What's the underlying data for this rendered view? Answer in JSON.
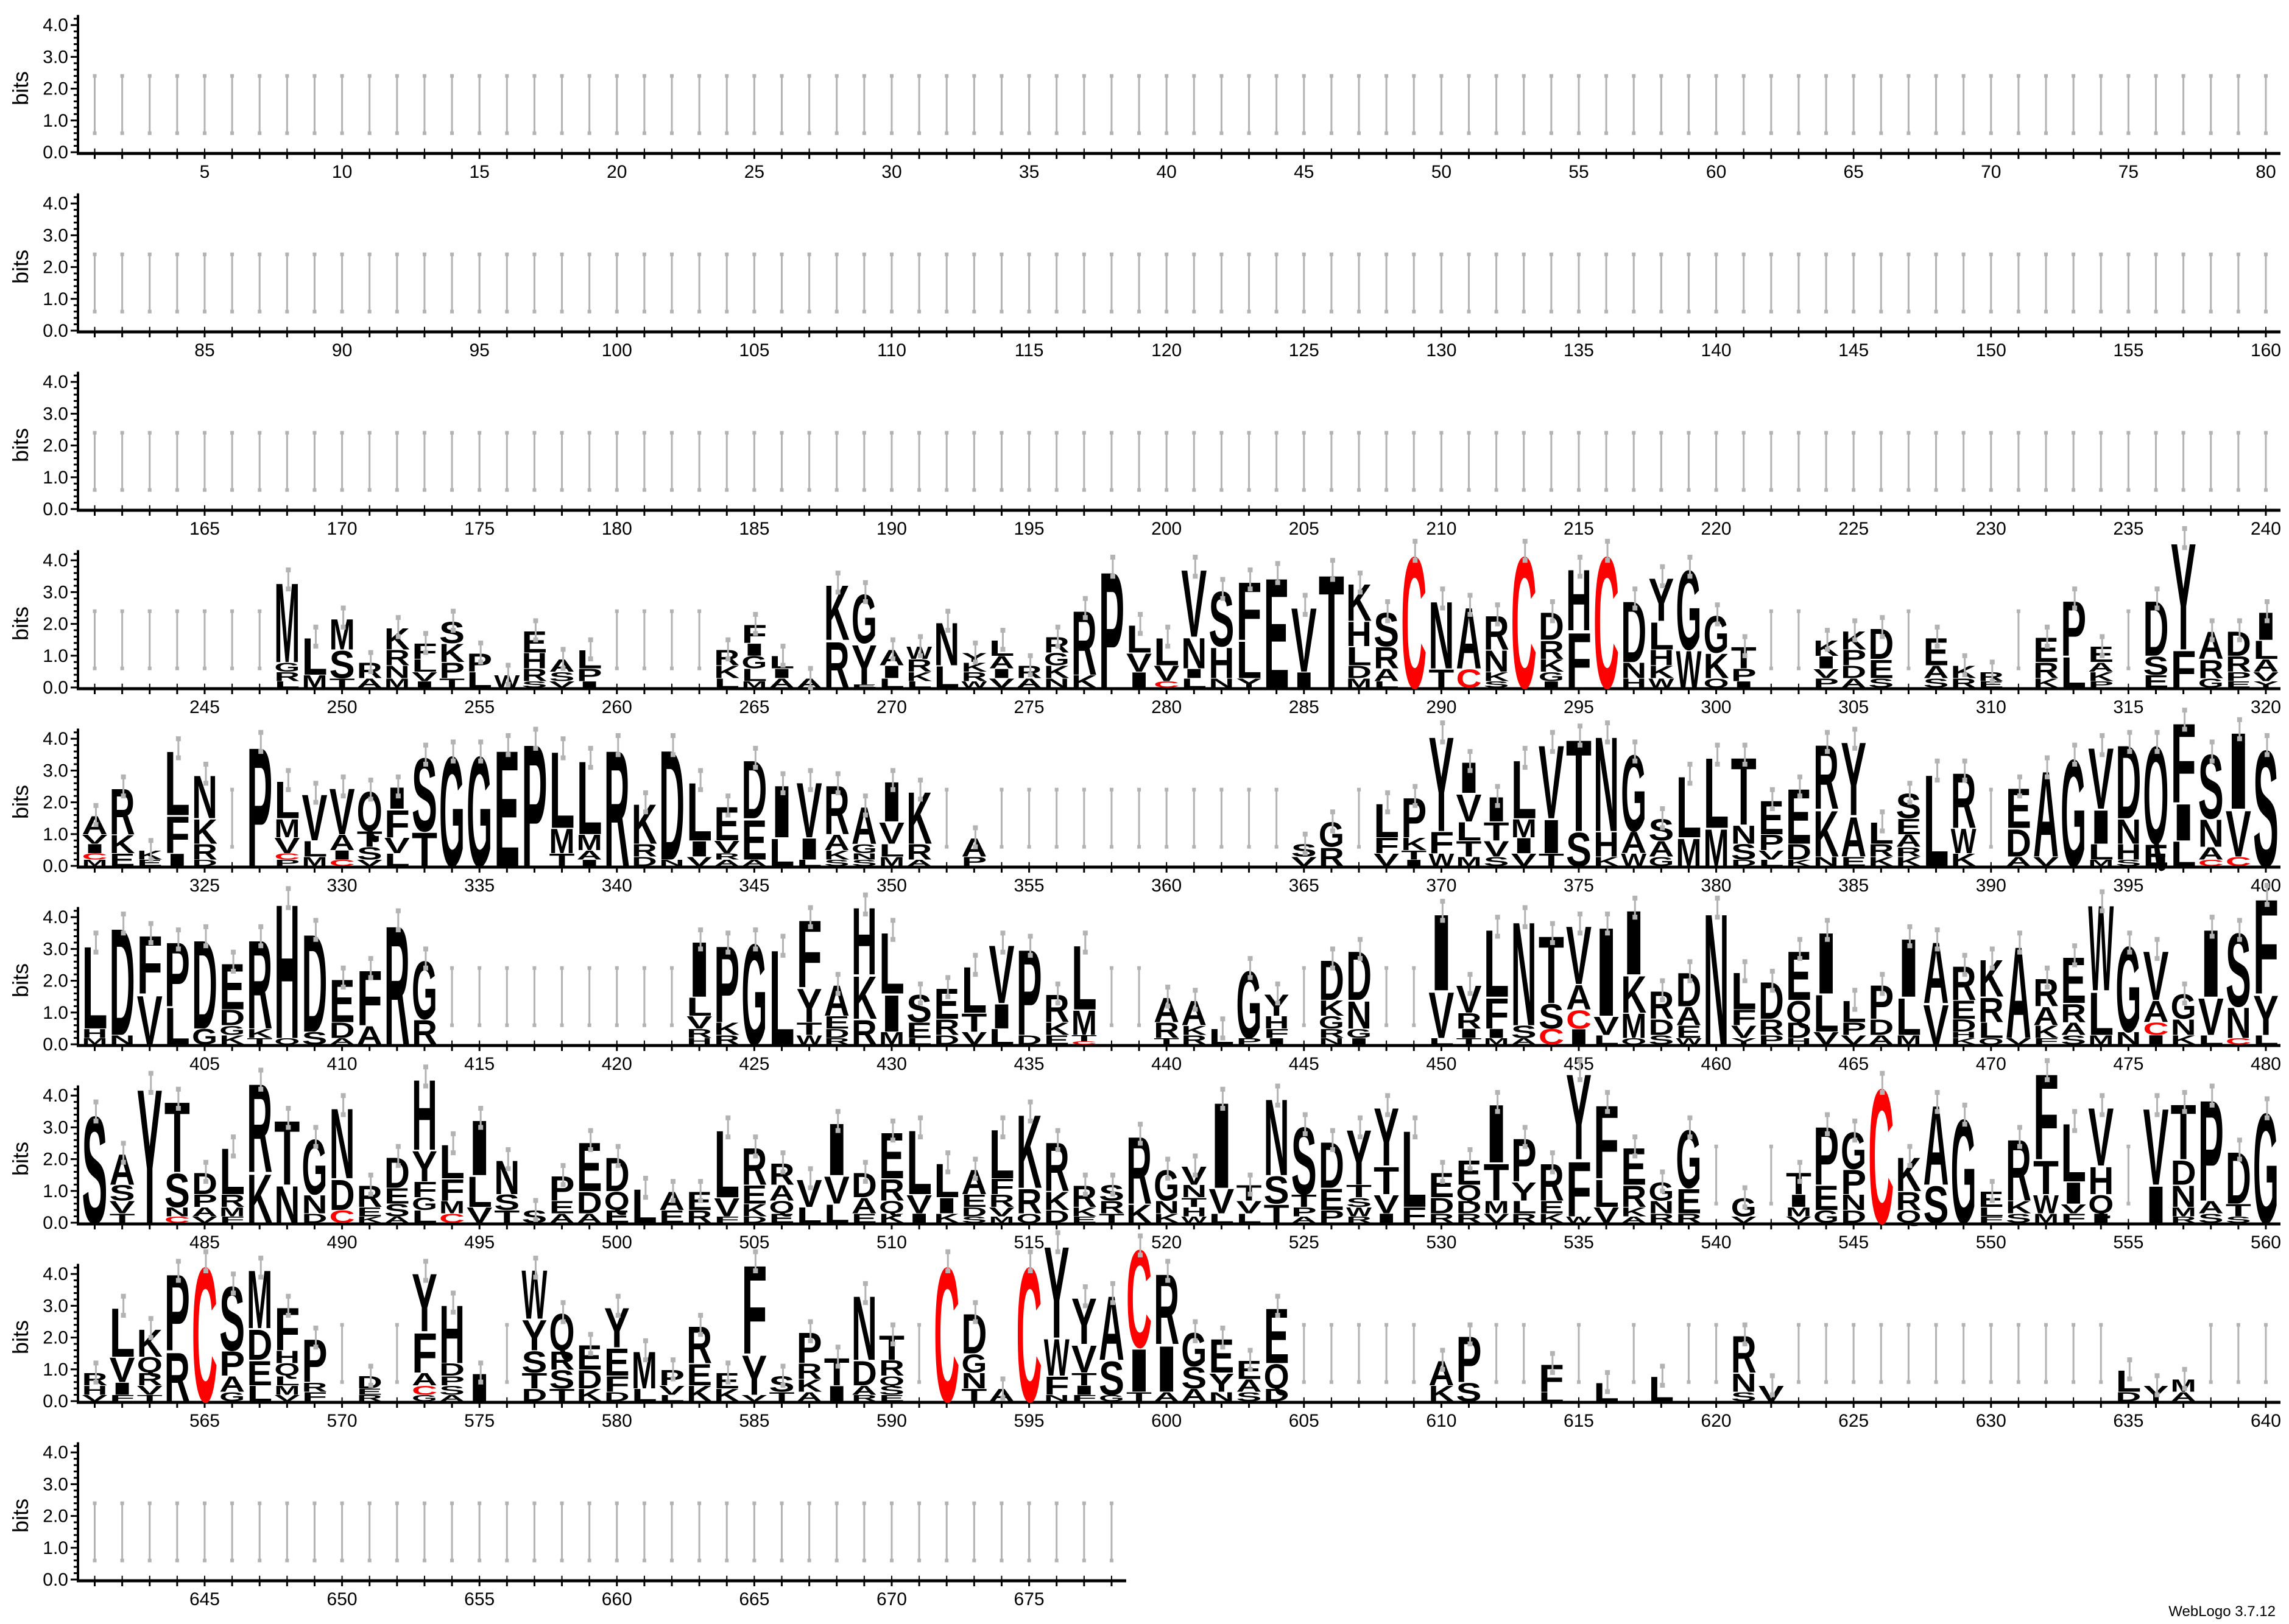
{
  "chart_data": {
    "type": "sequence_logo",
    "ylabel": "bits",
    "xlabel": "",
    "ylim": [
      0,
      4.32
    ],
    "y_tick_labels": [
      "0.0",
      "1.0",
      "2.0",
      "3.0",
      "4.0"
    ],
    "position_range": [
      1,
      678
    ],
    "positions_per_row": 80,
    "x_tick_label_interval": 5,
    "default_error_bar_bits": [
      0.6,
      2.4
    ],
    "error_half_width_bits": 0.3,
    "colors": {
      "default": "#000000",
      "C": "#ff0000",
      "error_bar": "#b3b3b3"
    },
    "stacks_note": "letters listed top (most conserved) to bottom with height in bits",
    "stacks": {
      "248": "M2.6 G.3 R.3 L.2",
      "249": "L1.2 M.4",
      "250": "M1.0 S.9 T.3",
      "251": "R.5 A.3",
      "252": "K.7 R.5 N.4 M.3",
      "253": "F.5 L.4 V.3 I.2",
      "254": "S.7 K.6 P.5 T.3",
      "255": "P.6 L.5",
      "256": "W.4",
      "257": "E.7 H.5 R.4 S.2",
      "258": "A.4 S.3 V.2",
      "259": "L.6 P.4 I.2",
      "264": "R.5 K.4 L.3",
      "265": "F.6 I.4 G.4 L.4 M.2",
      "266": "L.4 I.3 A.3",
      "267": "A.3",
      "268": "K1.8 R1.5",
      "269": "G1.6 Y1.3 E.1",
      "270": "A.5 I.4 L.3",
      "271": "W.4 R.4 K.3 L.2",
      "272": "N1.4 L.7",
      "273": "Y.3 K.3 R.3 W.2",
      "274": "L.5 A.4 I.3 V.3",
      "275": "R.4 A.3",
      "276": "R.5 G.4 K.4 N.3",
      "277": "R2.1 K.4",
      "278": "P3.8",
      "279": "L.9 V.6 I.5",
      "280": "L.9 V.5 C.2",
      "281": "V2.2 N1.0 I.3 L.3",
      "282": "S1.8 H1.0 N.3",
      "283": "F1.9 L1.2 Y.3",
      "284": "E3.6",
      "285": "V2.1 I.5",
      "286": "T3.7",
      "287": "K1.2 H.8 L.6 D.4 M.3",
      "288": "S1.1 R.7 A.4 L.2",
      "289": "C4.3",
      "290": "N2.2 T.6",
      "291": "A2.0 C.6",
      "292": "R1.1 N.7 K.3 S.2",
      "293": "C4.3",
      "294": "D.9 R.6 K.4 G.3 I.2",
      "295": "H2.0 F1.8",
      "296": "C4.3",
      "297": "D2.0 N.5 H.3",
      "298": "Y1.4 L.9 H.5 K.4 W.3",
      "299": "G2.6 W1.2",
      "300": "G1.2 K.8 Q.3",
      "301": "T.7 P.4 I.2",
      "304": "K.5 I.4 V.3 P.3",
      "305": "K.6 P.5 D.4 A.3",
      "306": "D1.0 E.6 S.3",
      "308": "E.9 A.4 S.3",
      "309": "K.4 R.3",
      "310": "R.3 E.2",
      "312": "E.8 R.5 K.3",
      "313": "P1.8 L1.0",
      "314": "E.5 A.3 K.3 P.2",
      "316": "D1.8 S.6 E.4",
      "317": "Y3.5 F1.2",
      "318": "A.9 R.6 G.3",
      "319": "D.8 R.5 P.3 E.2",
      "320": "I.9 L.6 A.4 V.3 Y.2",
      "321": "A.6 V.3 I.3 C.2 M.2",
      "322": "R1.5 K.6 E.4",
      "323": "K.3 E.2",
      "324": "L2.1 F1.2 I.4",
      "325": "N1.4 K.8 R.5 D.2",
      "327": "P3.9",
      "328": "L1.2 M.6 V.5 C.2 P.2",
      "329": "V1.5 L.5 M.3",
      "330": "V1.5 A.5 I.3 C.2",
      "331": "Q1.3 T.5 S.4 V.2",
      "332": "I.7 F.9 V.5 L.4",
      "333": "S2.4 T1.1",
      "334": "G3.6",
      "335": "G3.6",
      "336": "E3.8",
      "337": "P4.0",
      "338": "L2.5 M.8 T.4",
      "339": "L2.4 M.5 A.3 I.2",
      "340": "R3.8",
      "341": "K1.3 R.4 D.3",
      "342": "D3.6 N.2",
      "343": "L1.9 I.5 V.3",
      "344": "E1.1 V.4 R.2 A.2",
      "345": "D1.9 E1.3 A.2",
      "346": "I1.7 L.9",
      "347": "V1.8 I.7 L.2",
      "348": "R1.6 A.5 K.3 S.2",
      "349": "A1.2 G.3 N.2 S.2",
      "350": "I1.3 V.7 L.4 M.3",
      "351": "K1.7 R.5 A.2",
      "353": "A.6 P.3",
      "365": "S.4 V.3",
      "366": "G.8 R.6",
      "368": "L1.1 F.5 V.4",
      "369": "P1.3 K.4 T.3 I.2",
      "370": "Y3.1 F.7 W.4",
      "371": "I1.0 V.9 L.6 T.5 M.3",
      "372": "I.8 T.6 V.5 S.3",
      "373": "L1.9 M.6 I.5 V.4",
      "374": "V2.4 I1.1 T.4",
      "375": "T3.0 S1.1",
      "376": "N3.1 H.8 K.3",
      "377": "G2.5 A.7 W.4",
      "378": "S.7 A.5 G.3",
      "379": "L2.0 M.9",
      "380": "L2.3 M1.2",
      "381": "T2.2 N.6 S.5 D.2",
      "382": "E1.1 P.5 V.3 L.2",
      "383": "E1.8 D.5 K.2",
      "384": "R2.1 K1.5 N.3",
      "385": "Y2.4 A1.3 E.3",
      "386": "L.7 R.4 K.3",
      "387": "S.8 E.5 A.4 R.3 K.3",
      "388": "L3.0",
      "389": "R1.8 W.8 K.4",
      "391": "E1.3 D.9 A.3",
      "392": "A2.8 V.3",
      "393": "G3.5",
      "394": "V2.0 I1.1 L.5 M.2",
      "395": "D2.4 N.8 H.5 S.2",
      "396": "Q3.2 E.7",
      "397": "F2.6 I1.2 L.8",
      "398": "S2.1 N.9 A.4 C.2",
      "399": "I2.5 V1.5 C.3",
      "400": "S3.8",
      "401": "L2.7 H.3 M.2",
      "402": "D3.5 N.3",
      "403": "F1.9 V1.6",
      "404": "P2.1 L1.2",
      "405": "D2.9 G.5",
      "406": "E1.5 D.5 G.3 K.3",
      "407": "R2.9 K.3 T.2",
      "408": "H4.4 Q.2",
      "409": "D3.2 S.4",
      "410": "E1.4 D.5 A.2",
      "411": "F1.8 A.6",
      "412": "R3.9",
      "413": "G1.9 R.8",
      "423": "I1.8 L.6 V.4 R.3 H.2",
      "424": "P2.5 K.4 R.3",
      "425": "G3.3",
      "426": "L3.1",
      "427": "F2.2 Y1.1 T.4 W.3",
      "428": "A1.0 E.4 D.3 R.2",
      "429": "H2.2 K1.4 R.8",
      "430": "L2.0 I1.2 M.4",
      "431": "S.9 E.5 L.2",
      "432": "E1.0 R.5 D.3",
      "433": "L1.5 T.6 V.4",
      "434": "V1.9 I.8 L.5",
      "435": "P2.8 D.3",
      "436": "R.9 K.4 E.3",
      "437": "L2.1 M.8 T.2 C.1",
      "440": "A.8 R.5 T.2",
      "441": "A.8 K.3 R.3",
      "442": "L.5",
      "443": "G2.2 P.2",
      "444": "Y.7 H.4 F.3 I.2",
      "446": "D1.3 K.5 G.4 R.3 N.2",
      "447": "D1.6 N.9 G.3 I.2",
      "450": "I2.5 V1.5 L.2",
      "451": "V.9 R.5 I.3 T.2",
      "452": "L2.2 F1.0 I.3 M.2",
      "453": "N3.4 S.4 A.2",
      "454": "T2.2 S.8 C.5",
      "455": "V1.9 A.8 C.6 I.5",
      "456": "I2.9 V.6 L.3",
      "457": "I2.1 K1.2 M.8 Q.2",
      "458": "R.9 D.5 S.3",
      "459": "D1.1 A.6 E.4 W.2",
      "460": "N4.3",
      "461": "L1.2 F.5 V.4 Y.2",
      "462": "D1.2 R.5 P.3",
      "463": "E1.6 Q.7 D.5 H.2",
      "464": "I2.0 L1.2 V.4",
      "465": "L.7 P.4 V.3",
      "466": "P1.1 D.5 A.3",
      "467": "I1.9 L1.2 M.3",
      "468": "A2.0 V1.3",
      "469": "R1.1 E.6 D.4 H.2 K.2",
      "470": "K1.2 R.8 L.5 Q.2",
      "471": "A3.0 V.2",
      "472": "R.9 A.6 K.4 F.2",
      "473": "E1.5 R.6 A.4 S.3",
      "474": "W2.8 L1.4 M.3",
      "475": "G2.8 N.4",
      "476": "V1.6 A.7 C.4 I.3",
      "477": "G.8 N.5 K.3",
      "478": "I2.2 V1.2 L.3",
      "479": "S2.4 N1.0 C.2",
      "480": "F3.1 Y1.3 L.3",
      "481": "S3.5",
      "482": "A1.0 S.5 V.4 T.3",
      "483": "Y4.4",
      "484": "T2.3 S1.1 N.3 C.2",
      "485": "D.7 P.4 A.3 V.2",
      "486": "L1.5 R.4 M.3 F.2",
      "487": "R2.9 K1.6",
      "488": "T2.1 N1.2",
      "489": "G1.8 N.6 D.3",
      "490": "N2.3 D1.0 C.4",
      "491": "R.7 E.3 K.2",
      "492": "D1.0 E.5 S.4 A.2",
      "493": "H2.3 Y1.0 F.5 G.4 L.4",
      "494": "L1.1 F.7 M.4 C.3",
      "495": "I1.8 L1.0 V.5",
      "496": "N1.1 S.5 T.4",
      "497": "S.4",
      "498": "P.8 E.4 A.3",
      "499": "E1.6 D.7 A.3",
      "500": "D1.1 Q.6 E.4",
      "501": "L1.1",
      "502": "A.6 E.4",
      "503": "E.6 R.4",
      "504": "L2.2 V.6 F.2",
      "505": "R1.2 E.6 K.4 D.2",
      "506": "R.7 A.5 Q.4 E.3",
      "507": "V.9 L.5",
      "508": "I1.7 V.9 L.6",
      "509": "D.8 A.5 E.3",
      "510": "E1.5 R.7 Q.4 K.3",
      "511": "L2.1 V.6 I.3",
      "512": "L1.1 I.5 K.3",
      "513": "A.8 E.4 D.3 S.2",
      "514": "L1.6 F.5 R.4 V.3 M.2",
      "515": "K2.4 R.8 Q.3",
      "516": "R1.6 K.6 D.4",
      "517": "R.7 K.3 E.2",
      "518": "S.5 R.4 T.3",
      "519": "R2.2 K.6",
      "520": "G1.0 N.4 K.3",
      "521": "V.6 N.4 T.3 H.3 W.2",
      "522": "I2.8 V.8 L.3",
      "523": "T.5 V.4 L.3",
      "524": "N2.5 S.9 T.6",
      "525": "S2.2 T.4 P.3 A.2",
      "526": "D1.5 E.7 P.4",
      "527": "Y1.8 T.4 S.3 W.3 R.2",
      "528": "Y1.9 T.9 V.6 I.3",
      "529": "L2.5 F.5",
      "530": "E.8 D.5 R.3",
      "531": "E.8 Q.5 D.4 R.3",
      "532": "I1.9 T1.2 M.4 V.3",
      "533": "P1.4 Y.6 L.4 R.3",
      "534": "R1.2 E.4 K.3",
      "535": "Y2.8 F1.8 W.2",
      "536": "F2.4 L.9 V.5",
      "537": "E1.2 R.7 K.3 A.2",
      "538": "G.6 N.4 R.3",
      "539": "G1.9 E.8 R.3",
      "541": "G.6 V.2",
      "543": "T.7 I.4 M.3 V.2",
      "544": "P1.9 E.8 G.4",
      "545": "G1.2 P.8 N.5 D.4",
      "546": "C4.4",
      "547": "K1.1 R.6 Q.4",
      "548": "A2.6 S1.2",
      "549": "G3.4",
      "550": "E.5 L.3 F.2",
      "551": "R2.0 K.4 S.3",
      "552": "F2.8 T1.1 W.6 M.3",
      "553": "L1.9 I.7 V.3 F.3",
      "554": "V1.9 H.9 Q.6 I.3",
      "556": "V2.5 I1.2",
      "557": "T1.8 D.8 N.7 M.3 R.2",
      "558": "P3.3 A.4 S.3",
      "559": "D1.7 T.4 S.2",
      "560": "G3.6",
      "561": "R.4 H.3 V.2",
      "562": "L1.6 V.8 I.4 F.2",
      "563": "K.9 Q.5 R.4 V.3 T.2",
      "564": "P2.5 R1.6",
      "565": "C4.4",
      "566": "S2.1 P.8 A.5 G.3",
      "567": "M1.9 D1.0 E.8 L.5",
      "568": "F1.4 H.4 Q.4 L.3 M.3 V.2",
      "569": "P1.4 R.3 F.3",
      "571": "D.4 E.2 R.2",
      "573": "Y1.9 F1.3 A.4 C.3 G.2",
      "574": "H1.9 D.4 P.3 S.3 A.2",
      "575": "I.9",
      "577": "W1.6 Y1.0 S.7 T.5 D.4",
      "578": "Q1.2 R.6 S.6 T.4",
      "579": "E.8 D.6 K.4",
      "580": "Y1.3 E.9 F.5 D.3",
      "581": "M1.2 L.4",
      "582": "P.5 V.3 L.2",
      "583": "R1.2 E.7 K.5",
      "584": "E.5 K.4",
      "585": "F2.9 Y1.3 V.2",
      "586": "S.5 T.3",
      "587": "P1.0 R.5 K.4 A.3",
      "588": "T.9 I.5",
      "589": "N2.1 D.8 A.3 R.2",
      "590": "T.8 R.5 Q.3 S.3 E.2",
      "592": "C4.4",
      "593": "D1.3 G.6 N.5 T.4",
      "594": "A.4",
      "595": "C4.4",
      "596": "Y3.0 W1.2 F.6 N.2",
      "597": "Y1.5 V.9 T.4 I.3 F.2",
      "598": "A2.1 S1.1 G.2",
      "599": "C3.2 I1.4 T.3",
      "600": "R2.3 I1.5 A.3",
      "601": "G1.1 S.7 A.4",
      "602": "E1.1 Y.6 N.3",
      "603": "E.6 A.4 S.3",
      "604": "E1.8 Q.8 D.4",
      "610": "A.8 K.5",
      "611": "P1.5 S.6",
      "614": "F.9 L.3",
      "616": "L.6",
      "618": "L.8",
      "621": "R1.2 N.6 S.3",
      "622": "V.5",
      "635": "L.7 D.3",
      "636": "Y.5",
      "637": "M.4 A.3"
    }
  },
  "credit": "WebLogo 3.7.12"
}
